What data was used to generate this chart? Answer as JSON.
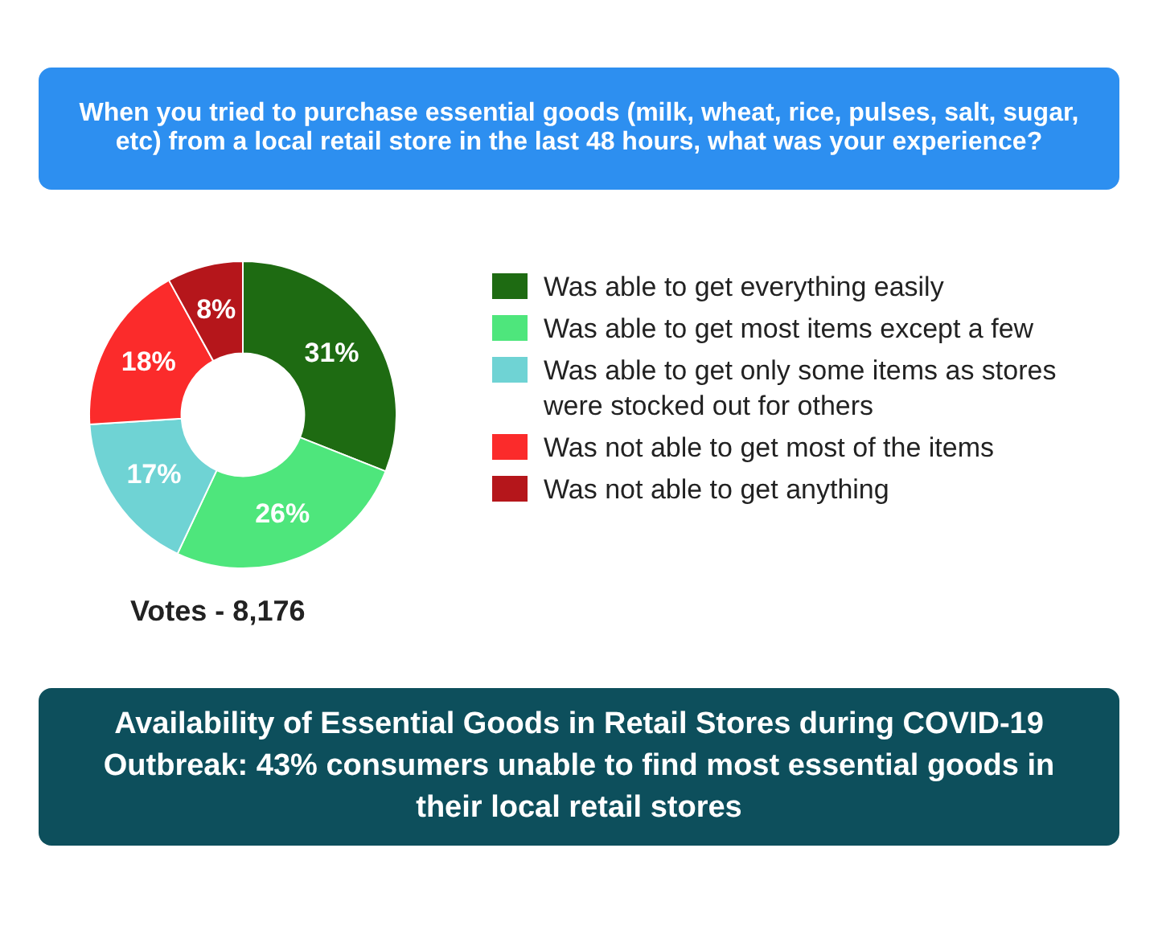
{
  "chart_data": {
    "type": "donut",
    "title": "When you tried to purchase essential goods (milk, wheat, rice, pulses, salt, sugar, etc) from a local retail store in the last 48 hours, what was your experience?",
    "subtitle": "Availability of Essential Goods in Retail Stores during COVID-19 Outbreak: 43% consumers unable to find most essential goods in their local retail stores",
    "categories": [
      "Was able to get everything easily",
      "Was able to get most items except a few",
      "Was able to get only some items as stores were stocked out for others",
      "Was not able to get most of the items",
      "Was not able to get anything"
    ],
    "values": [
      31,
      26,
      17,
      18,
      8
    ],
    "colors": [
      "#1e6b12",
      "#4ee67c",
      "#6fd3d4",
      "#fb2b2b",
      "#b5161b"
    ],
    "value_labels": [
      "31%",
      "26%",
      "17%",
      "18%",
      "8%"
    ],
    "legend": "right",
    "annotations": [
      "Votes - 8,176"
    ]
  }
}
